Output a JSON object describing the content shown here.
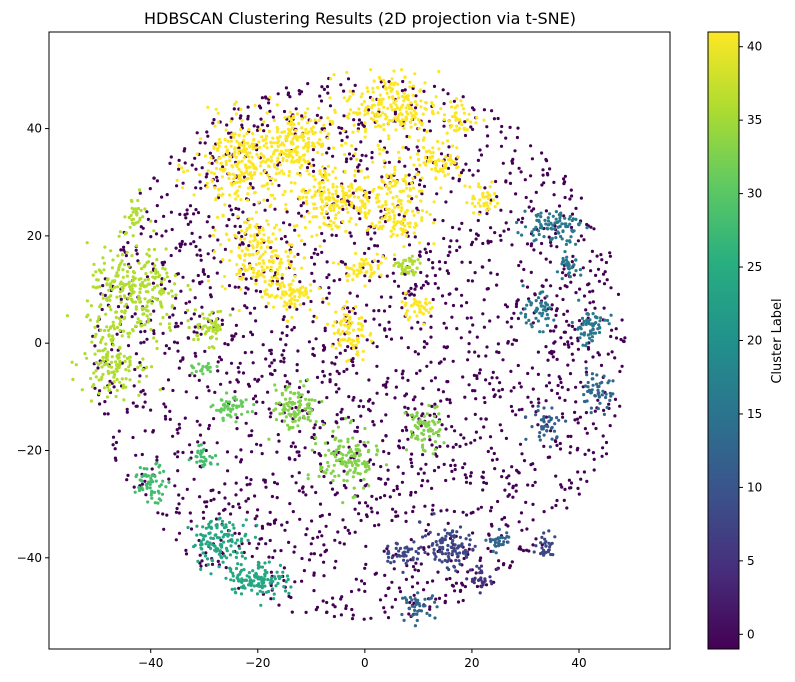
{
  "chart_data": {
    "type": "scatter",
    "title": "HDBSCAN Clustering Results (2D projection via t-SNE)",
    "xlabel": "",
    "ylabel": "",
    "xlim": [
      -59,
      57
    ],
    "ylim": [
      -57,
      58
    ],
    "x_ticks": [
      -40,
      -20,
      0,
      20,
      40
    ],
    "y_ticks": [
      -40,
      -20,
      0,
      20,
      40
    ],
    "grid": false,
    "colormap": "viridis",
    "colorbar": {
      "label": "Cluster Label",
      "range": [
        -1,
        41
      ],
      "ticks": [
        0,
        5,
        10,
        15,
        20,
        25,
        30,
        35,
        40
      ]
    },
    "noise_color": "#440154",
    "clusters": [
      {
        "label": 41,
        "cx": -22,
        "cy": 33,
        "rx": 9,
        "ry": 8,
        "n": 300
      },
      {
        "label": 41,
        "cx": -13,
        "cy": 38,
        "rx": 6,
        "ry": 5,
        "n": 150
      },
      {
        "label": 41,
        "cx": 5,
        "cy": 44,
        "rx": 8,
        "ry": 6,
        "n": 220
      },
      {
        "label": 41,
        "cx": -6,
        "cy": 27,
        "rx": 7,
        "ry": 6,
        "n": 180
      },
      {
        "label": 41,
        "cx": -20,
        "cy": 16,
        "rx": 6,
        "ry": 6,
        "n": 170
      },
      {
        "label": 41,
        "cx": -14,
        "cy": 9,
        "rx": 4,
        "ry": 3,
        "n": 80
      },
      {
        "label": 41,
        "cx": 5,
        "cy": 26,
        "rx": 6,
        "ry": 8,
        "n": 180
      },
      {
        "label": 41,
        "cx": 14,
        "cy": 34,
        "rx": 4,
        "ry": 3,
        "n": 70
      },
      {
        "label": 41,
        "cx": 18,
        "cy": 42,
        "rx": 3,
        "ry": 3,
        "n": 40
      },
      {
        "label": 41,
        "cx": 22,
        "cy": 27,
        "rx": 3,
        "ry": 3,
        "n": 40
      },
      {
        "label": 41,
        "cx": -1,
        "cy": 14,
        "rx": 3,
        "ry": 2,
        "n": 50
      },
      {
        "label": 41,
        "cx": -3,
        "cy": 2,
        "rx": 3,
        "ry": 5,
        "n": 80
      },
      {
        "label": 41,
        "cx": 10,
        "cy": 7,
        "rx": 3,
        "ry": 2,
        "n": 40
      },
      {
        "label": 36,
        "cx": -43,
        "cy": 9,
        "rx": 8,
        "ry": 8,
        "n": 260
      },
      {
        "label": 36,
        "cx": -47,
        "cy": -3,
        "rx": 5,
        "ry": 6,
        "n": 140
      },
      {
        "label": 36,
        "cx": -29,
        "cy": 3,
        "rx": 3,
        "ry": 3,
        "n": 50
      },
      {
        "label": 36,
        "cx": -43,
        "cy": 24,
        "rx": 2,
        "ry": 3,
        "n": 30
      },
      {
        "label": 36,
        "cx": 8,
        "cy": 14,
        "rx": 2,
        "ry": 2,
        "n": 40
      },
      {
        "label": 33,
        "cx": -13,
        "cy": -12,
        "rx": 4,
        "ry": 4,
        "n": 100
      },
      {
        "label": 33,
        "cx": -3,
        "cy": -22,
        "rx": 5,
        "ry": 5,
        "n": 130
      },
      {
        "label": 33,
        "cx": 11,
        "cy": -16,
        "rx": 3,
        "ry": 4,
        "n": 70
      },
      {
        "label": 31,
        "cx": -25,
        "cy": -12,
        "rx": 3,
        "ry": 2,
        "n": 50
      },
      {
        "label": 31,
        "cx": -30,
        "cy": -5,
        "rx": 2,
        "ry": 1,
        "n": 20
      },
      {
        "label": 28,
        "cx": -40,
        "cy": -26,
        "rx": 3,
        "ry": 3,
        "n": 60
      },
      {
        "label": 28,
        "cx": -30,
        "cy": -21,
        "rx": 2,
        "ry": 2,
        "n": 30
      },
      {
        "label": 24,
        "cx": -27,
        "cy": -37,
        "rx": 5,
        "ry": 4,
        "n": 120
      },
      {
        "label": 24,
        "cx": -20,
        "cy": -44,
        "rx": 5,
        "ry": 3,
        "n": 120
      },
      {
        "label": 16,
        "cx": 35,
        "cy": 22,
        "rx": 5,
        "ry": 3,
        "n": 90
      },
      {
        "label": 16,
        "cx": 42,
        "cy": 3,
        "rx": 3,
        "ry": 3,
        "n": 60
      },
      {
        "label": 16,
        "cx": 32,
        "cy": 6,
        "rx": 3,
        "ry": 3,
        "n": 50
      },
      {
        "label": 16,
        "cx": 38,
        "cy": 14,
        "rx": 2,
        "ry": 2,
        "n": 30
      },
      {
        "label": 13,
        "cx": 43,
        "cy": -9,
        "rx": 3,
        "ry": 3,
        "n": 50
      },
      {
        "label": 13,
        "cx": 25,
        "cy": -37,
        "rx": 2,
        "ry": 2,
        "n": 30
      },
      {
        "label": 13,
        "cx": 10,
        "cy": -49,
        "rx": 3,
        "ry": 2,
        "n": 40
      },
      {
        "label": 12,
        "cx": 34,
        "cy": -15,
        "rx": 3,
        "ry": 3,
        "n": 40
      },
      {
        "label": 8,
        "cx": 16,
        "cy": -38,
        "rx": 5,
        "ry": 4,
        "n": 100
      },
      {
        "label": 8,
        "cx": 7,
        "cy": -39,
        "rx": 3,
        "ry": 2,
        "n": 40
      },
      {
        "label": 8,
        "cx": 34,
        "cy": -38,
        "rx": 2,
        "ry": 2,
        "n": 30
      },
      {
        "label": 5,
        "cx": 22,
        "cy": -44,
        "rx": 2,
        "ry": 2,
        "n": 30
      }
    ]
  }
}
